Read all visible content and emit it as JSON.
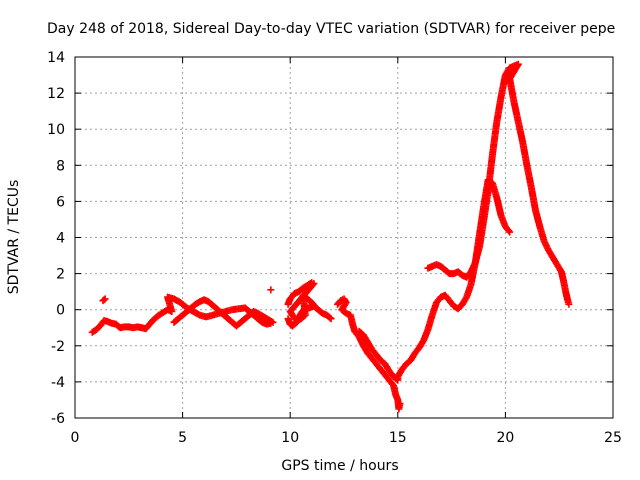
{
  "chart_data": {
    "type": "scatter",
    "title": "Day 248 of 2018, Sidereal Day-to-day VTEC variation (SDTVAR) for receiver pepe",
    "xlabel": "GPS time / hours",
    "ylabel": "SDTVAR / TECUs",
    "xlim": [
      0,
      25
    ],
    "ylim": [
      -6,
      14
    ],
    "xticks": [
      0,
      5,
      10,
      15,
      20,
      25
    ],
    "yticks": [
      -6,
      -4,
      -2,
      0,
      2,
      4,
      6,
      8,
      10,
      12,
      14
    ],
    "grid": true,
    "marker": "+",
    "color": "#ff0000",
    "series": [
      {
        "points": [
          [
            0.8,
            -1.25
          ],
          [
            1.0,
            -1.1
          ],
          [
            1.2,
            -0.85
          ],
          [
            1.35,
            -0.6
          ],
          [
            1.5,
            -0.65
          ],
          [
            1.7,
            -0.75
          ],
          [
            1.9,
            -0.8
          ],
          [
            2.1,
            -1.0
          ],
          [
            2.3,
            -0.95
          ],
          [
            2.5,
            -0.95
          ],
          [
            2.7,
            -1.0
          ],
          [
            2.9,
            -0.95
          ],
          [
            3.1,
            -1.0
          ],
          [
            3.3,
            -1.05
          ],
          [
            3.5,
            -0.75
          ],
          [
            3.7,
            -0.5
          ],
          [
            3.9,
            -0.3
          ],
          [
            4.1,
            -0.15
          ],
          [
            4.3,
            0.0
          ],
          [
            4.5,
            -0.1
          ],
          [
            4.3,
            0.7
          ],
          [
            4.6,
            0.6
          ],
          [
            4.9,
            0.4
          ],
          [
            5.2,
            0.1
          ],
          [
            5.5,
            -0.1
          ],
          [
            5.8,
            -0.3
          ],
          [
            6.1,
            -0.4
          ],
          [
            6.4,
            -0.3
          ],
          [
            6.7,
            -0.2
          ],
          [
            7.0,
            -0.1
          ],
          [
            7.3,
            0.0
          ],
          [
            7.6,
            0.05
          ],
          [
            7.9,
            0.1
          ],
          [
            8.1,
            -0.1
          ],
          [
            8.3,
            -0.3
          ],
          [
            8.5,
            -0.5
          ],
          [
            8.7,
            -0.7
          ],
          [
            8.9,
            -0.8
          ],
          [
            9.1,
            -0.75
          ],
          [
            4.6,
            -0.7
          ],
          [
            4.8,
            -0.5
          ],
          [
            5.0,
            -0.3
          ],
          [
            5.2,
            -0.1
          ],
          [
            5.4,
            0.1
          ],
          [
            5.6,
            0.3
          ],
          [
            5.8,
            0.45
          ],
          [
            6.0,
            0.55
          ],
          [
            6.2,
            0.45
          ],
          [
            7.5,
            -0.9
          ],
          [
            7.7,
            -0.7
          ],
          [
            7.9,
            -0.5
          ],
          [
            8.1,
            -0.3
          ],
          [
            8.3,
            -0.1
          ],
          [
            8.5,
            -0.2
          ],
          [
            9.2,
            -0.7
          ],
          [
            1.3,
            0.5
          ],
          [
            1.4,
            0.6
          ],
          [
            9.9,
            -0.5
          ],
          [
            10.0,
            -0.8
          ],
          [
            10.1,
            -0.9
          ],
          [
            10.3,
            -0.7
          ],
          [
            10.5,
            -0.2
          ],
          [
            10.7,
            0.1
          ],
          [
            10.9,
            0.1
          ],
          [
            11.1,
            0.2
          ],
          [
            11.3,
            0.0
          ],
          [
            11.5,
            -0.2
          ],
          [
            11.7,
            -0.3
          ],
          [
            11.9,
            -0.5
          ],
          [
            9.9,
            0.3
          ],
          [
            10.0,
            0.6
          ],
          [
            10.2,
            0.9
          ],
          [
            10.4,
            1.0
          ],
          [
            10.6,
            1.2
          ],
          [
            10.8,
            1.35
          ],
          [
            11.0,
            1.5
          ],
          [
            11.1,
            1.45
          ],
          [
            10.0,
            -0.1
          ],
          [
            10.1,
            -0.3
          ],
          [
            10.3,
            -0.6
          ],
          [
            10.5,
            -0.5
          ],
          [
            10.7,
            -0.3
          ],
          [
            10.6,
            0.8
          ],
          [
            10.8,
            0.6
          ],
          [
            11.0,
            0.4
          ],
          [
            11.2,
            0.1
          ],
          [
            9.1,
            1.1
          ],
          [
            12.2,
            0.3
          ],
          [
            12.35,
            0.5
          ],
          [
            12.5,
            0.6
          ],
          [
            12.6,
            0.4
          ],
          [
            12.4,
            0.0
          ],
          [
            12.6,
            -0.2
          ],
          [
            12.8,
            -0.3
          ],
          [
            12.9,
            -0.8
          ],
          [
            13.0,
            -1.2
          ],
          [
            13.2,
            -1.5
          ],
          [
            13.4,
            -2.0
          ],
          [
            13.6,
            -2.4
          ],
          [
            13.8,
            -2.7
          ],
          [
            14.0,
            -3.0
          ],
          [
            14.2,
            -3.3
          ],
          [
            14.4,
            -3.6
          ],
          [
            14.6,
            -3.9
          ],
          [
            14.8,
            -4.2
          ],
          [
            14.9,
            -4.7
          ],
          [
            15.0,
            -5.0
          ],
          [
            15.05,
            -5.5
          ],
          [
            15.1,
            -5.2
          ],
          [
            13.2,
            -1.2
          ],
          [
            13.4,
            -1.4
          ],
          [
            13.6,
            -1.8
          ],
          [
            13.8,
            -2.2
          ],
          [
            14.0,
            -2.5
          ],
          [
            14.2,
            -2.8
          ],
          [
            14.4,
            -3.0
          ],
          [
            14.6,
            -3.4
          ],
          [
            14.8,
            -3.7
          ],
          [
            15.0,
            -3.9
          ],
          [
            15.0,
            -3.7
          ],
          [
            15.2,
            -3.3
          ],
          [
            15.4,
            -3.0
          ],
          [
            15.6,
            -2.8
          ],
          [
            15.8,
            -2.4
          ],
          [
            16.0,
            -2.1
          ],
          [
            16.2,
            -1.7
          ],
          [
            16.4,
            -1.1
          ],
          [
            16.6,
            -0.3
          ],
          [
            16.8,
            0.4
          ],
          [
            17.0,
            0.7
          ],
          [
            17.2,
            0.8
          ],
          [
            17.4,
            0.5
          ],
          [
            17.6,
            0.2
          ],
          [
            17.8,
            0.05
          ],
          [
            18.0,
            0.3
          ],
          [
            18.2,
            0.7
          ],
          [
            18.4,
            1.4
          ],
          [
            18.6,
            2.6
          ],
          [
            18.8,
            4.2
          ],
          [
            19.0,
            5.8
          ],
          [
            19.2,
            7.2
          ],
          [
            19.4,
            7.0
          ],
          [
            19.6,
            6.2
          ],
          [
            19.8,
            5.2
          ],
          [
            20.0,
            4.6
          ],
          [
            20.2,
            4.3
          ],
          [
            16.4,
            2.3
          ],
          [
            16.6,
            2.4
          ],
          [
            16.8,
            2.5
          ],
          [
            17.0,
            2.4
          ],
          [
            17.2,
            2.2
          ],
          [
            17.4,
            2.0
          ],
          [
            17.6,
            2.0
          ],
          [
            17.8,
            2.1
          ],
          [
            18.0,
            1.9
          ],
          [
            18.2,
            1.8
          ],
          [
            18.4,
            2.1
          ],
          [
            18.6,
            2.6
          ],
          [
            18.8,
            3.5
          ],
          [
            19.0,
            5.0
          ],
          [
            19.2,
            6.6
          ],
          [
            19.4,
            8.6
          ],
          [
            19.6,
            10.4
          ],
          [
            19.8,
            11.8
          ],
          [
            20.0,
            13.0
          ],
          [
            20.2,
            13.4
          ],
          [
            20.4,
            13.5
          ],
          [
            20.6,
            13.6
          ],
          [
            20.2,
            12.8
          ],
          [
            20.4,
            11.5
          ],
          [
            20.6,
            10.4
          ],
          [
            20.8,
            9.3
          ],
          [
            21.0,
            8.0
          ],
          [
            21.2,
            6.8
          ],
          [
            21.4,
            5.5
          ],
          [
            21.6,
            4.6
          ],
          [
            21.8,
            3.8
          ],
          [
            22.0,
            3.3
          ],
          [
            22.2,
            2.9
          ],
          [
            22.4,
            2.5
          ],
          [
            22.6,
            2.1
          ],
          [
            22.7,
            1.6
          ],
          [
            22.8,
            1.0
          ],
          [
            22.9,
            0.5
          ],
          [
            22.95,
            0.3
          ]
        ]
      }
    ]
  }
}
